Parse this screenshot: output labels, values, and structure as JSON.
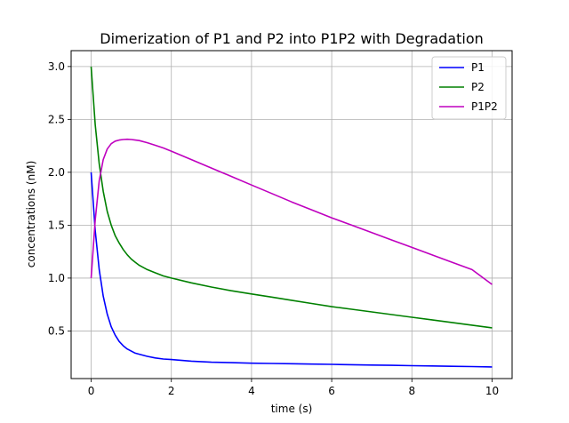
{
  "chart_data": {
    "type": "line",
    "title": "Dimerization of P1 and P2 into P1P2 with Degradation",
    "xlabel": "time (s)",
    "ylabel": "concentrations (nM)",
    "xlim": [
      -0.5,
      10.5
    ],
    "ylim": [
      0.05,
      3.15
    ],
    "x_ticks": [
      0,
      2,
      4,
      6,
      8,
      10
    ],
    "y_ticks": [
      0.5,
      1.0,
      1.5,
      2.0,
      2.5,
      3.0
    ],
    "x_tick_labels": [
      "0",
      "2",
      "4",
      "6",
      "8",
      "10"
    ],
    "y_tick_labels": [
      "0.5",
      "1.0",
      "1.5",
      "2.0",
      "2.5",
      "3.0"
    ],
    "grid": true,
    "legend_position": "top-right",
    "x": [
      0,
      0.1,
      0.2,
      0.3,
      0.4,
      0.5,
      0.6,
      0.7,
      0.8,
      0.9,
      1.0,
      1.1,
      1.2,
      1.4,
      1.6,
      1.8,
      2.0,
      2.5,
      3.0,
      3.5,
      4.0,
      4.5,
      5.0,
      5.5,
      6.0,
      6.5,
      7.0,
      7.5,
      8.0,
      8.5,
      9.0,
      9.5,
      10.0
    ],
    "series": [
      {
        "name": "P1",
        "color": "#0000ff",
        "values": [
          2.0,
          1.45,
          1.08,
          0.83,
          0.66,
          0.54,
          0.46,
          0.4,
          0.36,
          0.33,
          0.31,
          0.29,
          0.28,
          0.26,
          0.245,
          0.235,
          0.23,
          0.215,
          0.205,
          0.2,
          0.195,
          0.193,
          0.19,
          0.187,
          0.184,
          0.181,
          0.178,
          0.175,
          0.172,
          0.169,
          0.166,
          0.163,
          0.16
        ]
      },
      {
        "name": "P2",
        "color": "#008000",
        "values": [
          3.0,
          2.45,
          2.08,
          1.82,
          1.63,
          1.5,
          1.4,
          1.33,
          1.27,
          1.22,
          1.18,
          1.15,
          1.12,
          1.08,
          1.05,
          1.02,
          1.0,
          0.955,
          0.915,
          0.88,
          0.85,
          0.82,
          0.79,
          0.76,
          0.73,
          0.705,
          0.68,
          0.655,
          0.63,
          0.605,
          0.58,
          0.555,
          0.53
        ]
      },
      {
        "name": "P1P2",
        "color": "#bf00bf",
        "values": [
          1.0,
          1.55,
          1.92,
          2.12,
          2.22,
          2.27,
          2.295,
          2.305,
          2.31,
          2.312,
          2.31,
          2.305,
          2.3,
          2.28,
          2.255,
          2.23,
          2.2,
          2.12,
          2.04,
          1.96,
          1.88,
          1.8,
          1.72,
          1.645,
          1.57,
          1.5,
          1.43,
          1.36,
          1.29,
          1.22,
          1.15,
          1.08,
          0.94
        ]
      }
    ]
  }
}
